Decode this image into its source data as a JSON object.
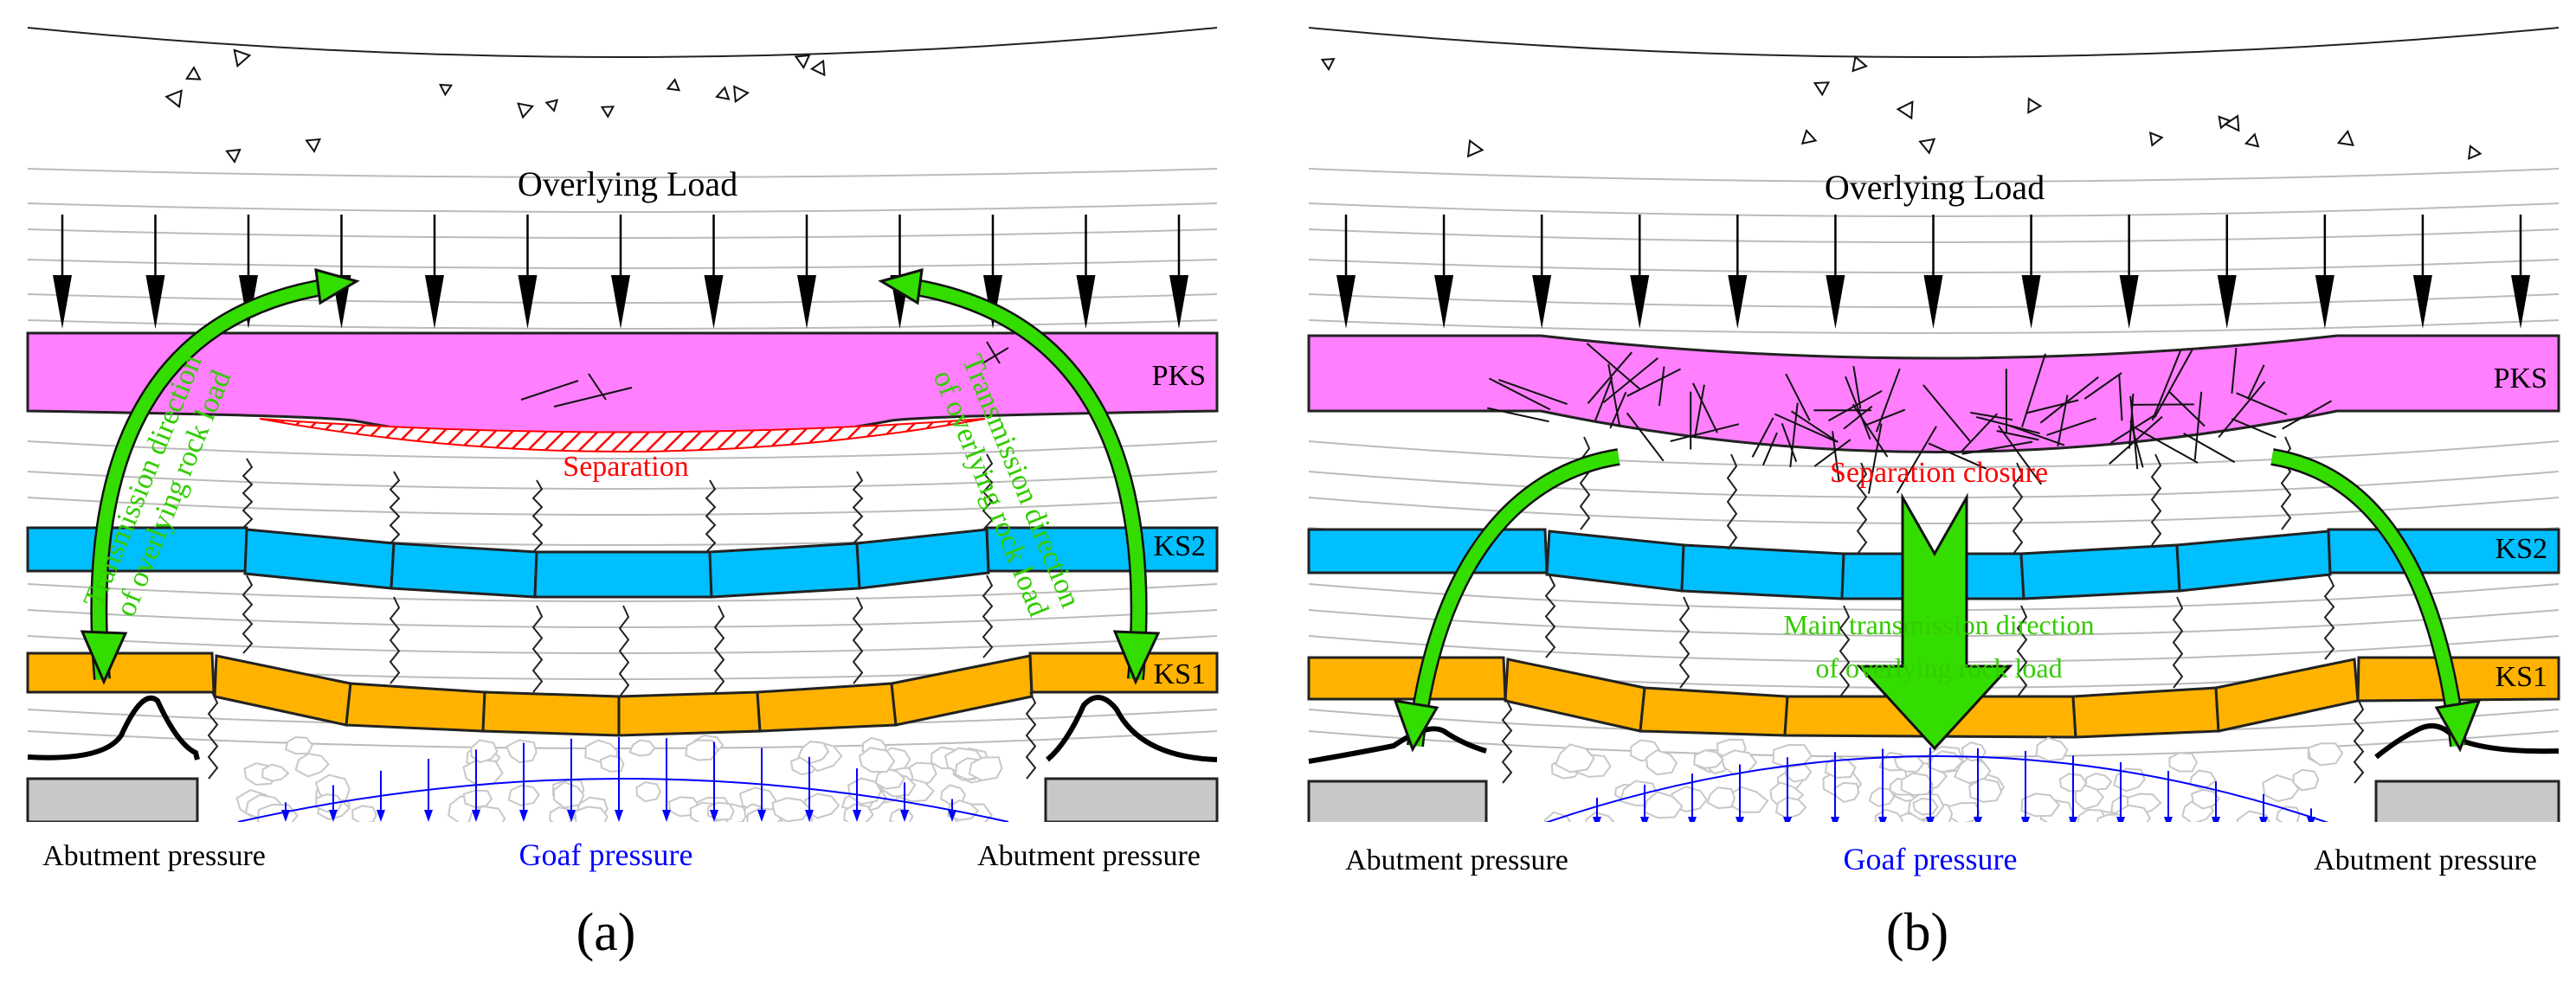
{
  "panel_a": {
    "overlying_load": "Overlying Load",
    "pks": "PKS",
    "ks2": "KS2",
    "ks1": "KS1",
    "separation": "Separation",
    "transmission_left_line1": "Transmission direction",
    "transmission_left_line2": "of overlying rock load",
    "transmission_right_line1": "Transmission direction",
    "transmission_right_line2": "of overlying rock load",
    "abutment_left": "Abutment pressure",
    "goaf": "Goaf pressure",
    "abutment_right": "Abutment pressure",
    "caption": "(a)"
  },
  "panel_b": {
    "overlying_load": "Overlying Load",
    "pks": "PKS",
    "ks2": "KS2",
    "ks1": "KS1",
    "separation": "Separation closure",
    "main_transmission_line1": "Main transmission direction",
    "main_transmission_line2": "of overlying rock load",
    "abutment_left": "Abutment pressure",
    "goaf": "Goaf pressure",
    "abutment_right": "Abutment pressure",
    "caption": "(b)"
  },
  "colors": {
    "pks": "#ff7fff",
    "ks2": "#00bfff",
    "ks1": "#ffb300",
    "arrow_green": "#33dd00",
    "separation_red": "#ff0000",
    "goaf_blue": "#0000ff",
    "abutment_support": "#c8c8c8"
  }
}
